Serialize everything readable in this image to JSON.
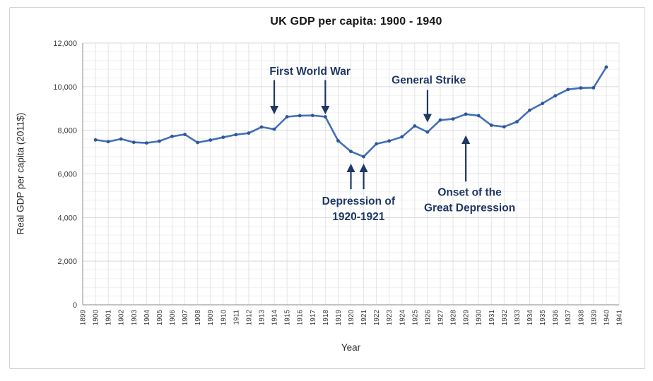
{
  "chart_data": {
    "type": "line",
    "title": "UK GDP per capita: 1900 - 1940",
    "xlabel": "Year",
    "ylabel": "Real GDP per capita (2011$)",
    "x_axis_range": [
      1899,
      1941
    ],
    "ylim": [
      0,
      12000
    ],
    "y_major_step": 2000,
    "y_minor_step": 400,
    "grid": true,
    "legend": "none",
    "x_tick_labels": [
      "1899",
      "1900",
      "1901",
      "1902",
      "1903",
      "1904",
      "1905",
      "1906",
      "1907",
      "1908",
      "1909",
      "1910",
      "1911",
      "1912",
      "1913",
      "1914",
      "1915",
      "1916",
      "1917",
      "1918",
      "1919",
      "1920",
      "1921",
      "1922",
      "1923",
      "1924",
      "1925",
      "1926",
      "1927",
      "1928",
      "1929",
      "1930",
      "1931",
      "1932",
      "1933",
      "1934",
      "1935",
      "1936",
      "1937",
      "1938",
      "1939",
      "1940",
      "1941"
    ],
    "y_ticks": [
      {
        "v": 0,
        "label": "0"
      },
      {
        "v": 2000,
        "label": "2,000"
      },
      {
        "v": 4000,
        "label": "4,000"
      },
      {
        "v": 6000,
        "label": "6,000"
      },
      {
        "v": 8000,
        "label": "8,000"
      },
      {
        "v": 10000,
        "label": "10,000"
      },
      {
        "v": 12000,
        "label": "12,000"
      }
    ],
    "x": [
      1900,
      1901,
      1902,
      1903,
      1904,
      1905,
      1906,
      1907,
      1908,
      1909,
      1910,
      1911,
      1912,
      1913,
      1914,
      1915,
      1916,
      1917,
      1918,
      1919,
      1920,
      1921,
      1922,
      1923,
      1924,
      1925,
      1926,
      1927,
      1928,
      1929,
      1930,
      1931,
      1932,
      1933,
      1934,
      1935,
      1936,
      1937,
      1938,
      1939,
      1940
    ],
    "values": [
      7560,
      7480,
      7600,
      7450,
      7420,
      7500,
      7720,
      7810,
      7440,
      7550,
      7680,
      7800,
      7870,
      8150,
      8050,
      8620,
      8670,
      8680,
      8620,
      7520,
      7030,
      6790,
      7380,
      7510,
      7700,
      8200,
      7920,
      8470,
      8520,
      8740,
      8670,
      8230,
      8160,
      8390,
      8920,
      9230,
      9580,
      9870,
      9940,
      9950,
      10900
    ],
    "annotations": [
      {
        "lines": [
          "First World War"
        ],
        "text_year": 1916.8,
        "text_value": 10700,
        "arrows": [
          {
            "year": 1914,
            "from_value": 10300,
            "to_value": 8850
          },
          {
            "year": 1918,
            "from_value": 10300,
            "to_value": 8850
          }
        ]
      },
      {
        "lines": [
          "General Strike"
        ],
        "text_year": 1926.1,
        "text_value": 10300,
        "arrows": [
          {
            "year": 1926,
            "from_value": 9850,
            "to_value": 8480
          }
        ]
      },
      {
        "lines": [
          "Depression of",
          "1920-1921"
        ],
        "text_year": 1920.6,
        "text_value": 4400,
        "arrows": [
          {
            "year": 1920,
            "from_value": 5300,
            "to_value": 6350
          },
          {
            "year": 1921,
            "from_value": 5300,
            "to_value": 6350
          }
        ]
      },
      {
        "lines": [
          "Onset of the",
          "Great Depression"
        ],
        "text_year": 1929.3,
        "text_value": 4800,
        "arrows": [
          {
            "year": 1929,
            "from_value": 5650,
            "to_value": 7650
          }
        ]
      }
    ],
    "colors": {
      "line": "#4070b8",
      "marker": "#2f5597",
      "annotation": "#1f3864",
      "grid_minor": "#f0f0f0",
      "grid_major": "#dadada",
      "grid_vertical": "#e3e3e3",
      "axis": "#9f9f9f",
      "background": "#ffffff",
      "border": "#d4d4d4"
    }
  }
}
